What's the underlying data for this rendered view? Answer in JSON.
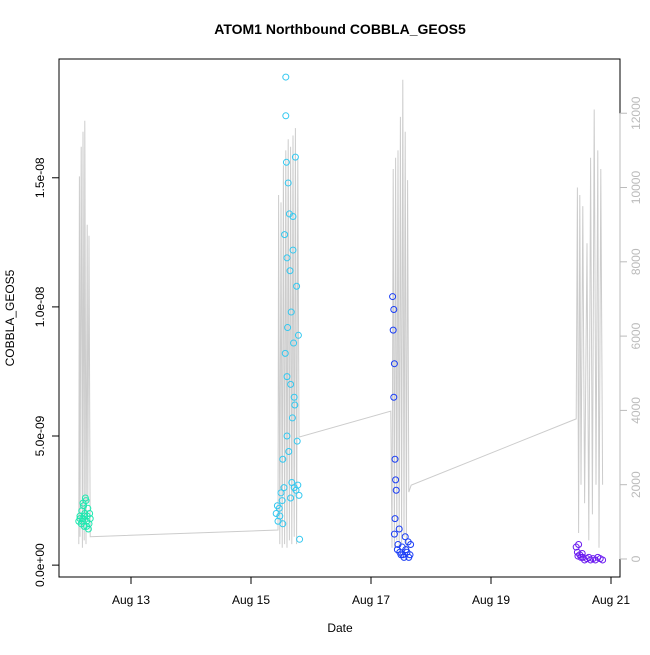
{
  "chart_data": {
    "type": "scatter",
    "title": "ATOM1 Northbound COBBLA_GEOS5",
    "x_label": "Date",
    "y_label": "COBBLA_GEOS5",
    "xlim": [
      11.8,
      21.15
    ],
    "xticks": [
      {
        "value": 13,
        "label": "Aug 13"
      },
      {
        "value": 15,
        "label": "Aug 15"
      },
      {
        "value": 17,
        "label": "Aug 17"
      },
      {
        "value": 19,
        "label": "Aug 19"
      },
      {
        "value": 21,
        "label": "Aug 21"
      }
    ],
    "ylim": [
      -4.6e-10,
      1.96e-08
    ],
    "yticks": [
      {
        "value": 0,
        "label": "0.0e+00"
      },
      {
        "value": 5e-09,
        "label": "5.0e-09"
      },
      {
        "value": 1e-08,
        "label": "1.0e-08"
      },
      {
        "value": 1.5e-08,
        "label": "1.5e-08"
      }
    ],
    "y2lim": [
      -485,
      13460
    ],
    "y2ticks": [
      0,
      2000,
      4000,
      6000,
      8000,
      10000,
      12000
    ],
    "series": [
      {
        "color": "#1EE8B0",
        "x": [
          12.13,
          12.15,
          12.17,
          12.18,
          12.2,
          12.21,
          12.22,
          12.23,
          12.25,
          12.26,
          12.27,
          12.28,
          12.3,
          12.31,
          12.15,
          12.19,
          12.24,
          12.29,
          12.2,
          12.26,
          12.22,
          12.32
        ],
        "values": [
          1.7e-09,
          1.9e-09,
          1.6e-09,
          2.1e-09,
          1.8e-09,
          2.3e-09,
          1.5e-09,
          2e-09,
          2.5e-09,
          1.7e-09,
          1.9e-09,
          2.2e-09,
          1.6e-09,
          2e-09,
          1.8e-09,
          1.7e-09,
          2.6e-09,
          1.4e-09,
          2.4e-09,
          1.5e-09,
          1.9e-09,
          1.8e-09
        ]
      },
      {
        "color": "#33C8F0",
        "x": [
          15.42,
          15.44,
          15.45,
          15.47,
          15.48,
          15.5,
          15.52,
          15.53,
          15.55,
          15.56,
          15.57,
          15.58,
          15.58,
          15.59,
          15.6,
          15.6,
          15.61,
          15.62,
          15.63,
          15.64,
          15.65,
          15.66,
          15.67,
          15.68,
          15.69,
          15.7,
          15.71,
          15.72,
          15.73,
          15.74,
          15.75,
          15.76,
          15.77,
          15.78,
          15.79,
          15.8,
          15.81,
          15.53,
          15.6,
          15.66,
          15.7,
          15.72
        ],
        "values": [
          2e-09,
          2.3e-09,
          1.7e-09,
          2.2e-09,
          1.9e-09,
          2.8e-09,
          2.5e-09,
          1.6e-09,
          3e-09,
          1.28e-08,
          8.2e-09,
          1.89e-08,
          1.74e-08,
          1.56e-08,
          1.19e-08,
          7.3e-09,
          9.2e-09,
          1.48e-08,
          4.4e-09,
          1.36e-08,
          1.14e-08,
          2.6e-09,
          9.8e-09,
          3.2e-09,
          5.7e-09,
          1.35e-08,
          8.6e-09,
          3e-09,
          6.2e-09,
          1.58e-08,
          2.9e-09,
          1.08e-08,
          4.8e-09,
          3.1e-09,
          8.9e-09,
          2.7e-09,
          1e-09,
          4.1e-09,
          5e-09,
          7e-09,
          1.22e-08,
          6.5e-09
        ]
      },
      {
        "color": "#1A3DF5",
        "x": [
          17.36,
          17.38,
          17.37,
          17.39,
          17.38,
          17.4,
          17.41,
          17.42,
          17.39,
          17.45,
          17.48,
          17.5,
          17.52,
          17.55,
          17.57,
          17.6,
          17.62,
          17.65,
          17.4,
          17.44,
          17.47,
          17.53,
          17.58,
          17.63,
          17.66
        ],
        "values": [
          1.04e-08,
          9.9e-09,
          9.1e-09,
          7.8e-09,
          6.5e-09,
          4.1e-09,
          3.3e-09,
          2.9e-09,
          1.2e-09,
          8e-10,
          5e-10,
          4e-10,
          7e-10,
          3e-10,
          1.1e-09,
          5e-10,
          9e-10,
          4e-10,
          1.8e-09,
          6e-10,
          1.4e-09,
          4e-10,
          6e-10,
          3e-10,
          8e-10
        ]
      },
      {
        "color": "#6A1AF0",
        "x": [
          20.42,
          20.44,
          20.46,
          20.48,
          20.5,
          20.53,
          20.56,
          20.6,
          20.63,
          20.66,
          20.7,
          20.74,
          20.78,
          20.82,
          20.86,
          20.45,
          20.52
        ],
        "values": [
          7e-10,
          5e-10,
          8e-10,
          4e-10,
          3e-10,
          3e-10,
          2e-10,
          2.5e-10,
          3e-10,
          2e-10,
          2.5e-10,
          2e-10,
          3e-10,
          2.5e-10,
          2e-10,
          3.5e-10,
          4.5e-10
        ]
      },
      {
        "type": "line",
        "axis": "y2",
        "color": "#cccccc",
        "x": [
          12.13,
          12.14,
          12.15,
          12.17,
          12.19,
          12.2,
          12.22,
          12.23,
          12.25,
          12.27,
          12.28,
          12.3,
          12.32,
          15.45,
          15.46,
          15.48,
          15.5,
          15.52,
          15.54,
          15.56,
          15.58,
          15.6,
          15.62,
          15.64,
          15.66,
          15.68,
          15.7,
          15.72,
          15.74,
          15.76,
          15.78,
          15.8,
          17.33,
          17.35,
          17.37,
          17.39,
          17.41,
          17.43,
          17.45,
          17.47,
          17.49,
          17.51,
          17.53,
          17.55,
          17.57,
          17.59,
          17.61,
          17.63,
          17.67,
          20.42,
          20.44,
          20.46,
          20.48,
          20.5,
          20.53,
          20.56,
          20.6,
          20.63,
          20.66,
          20.69,
          20.72,
          20.75,
          20.78,
          20.8,
          20.83,
          20.86
        ],
        "values": [
          400,
          10300,
          600,
          11100,
          300,
          11500,
          500,
          11800,
          400,
          9000,
          1500,
          8700,
          600,
          780,
          9800,
          400,
          9600,
          300,
          10600,
          400,
          11000,
          300,
          11300,
          500,
          11100,
          400,
          11400,
          600,
          11600,
          400,
          10800,
          3280,
          3980,
          300,
          10500,
          300,
          10800,
          500,
          11000,
          300,
          11900,
          400,
          12900,
          600,
          11500,
          300,
          10200,
          1800,
          1990,
          3770,
          10000,
          700,
          9800,
          2000,
          9500,
          1500,
          8500,
          500,
          10800,
          1200,
          12100,
          2000,
          11000,
          300,
          10500,
          2000
        ]
      }
    ]
  }
}
